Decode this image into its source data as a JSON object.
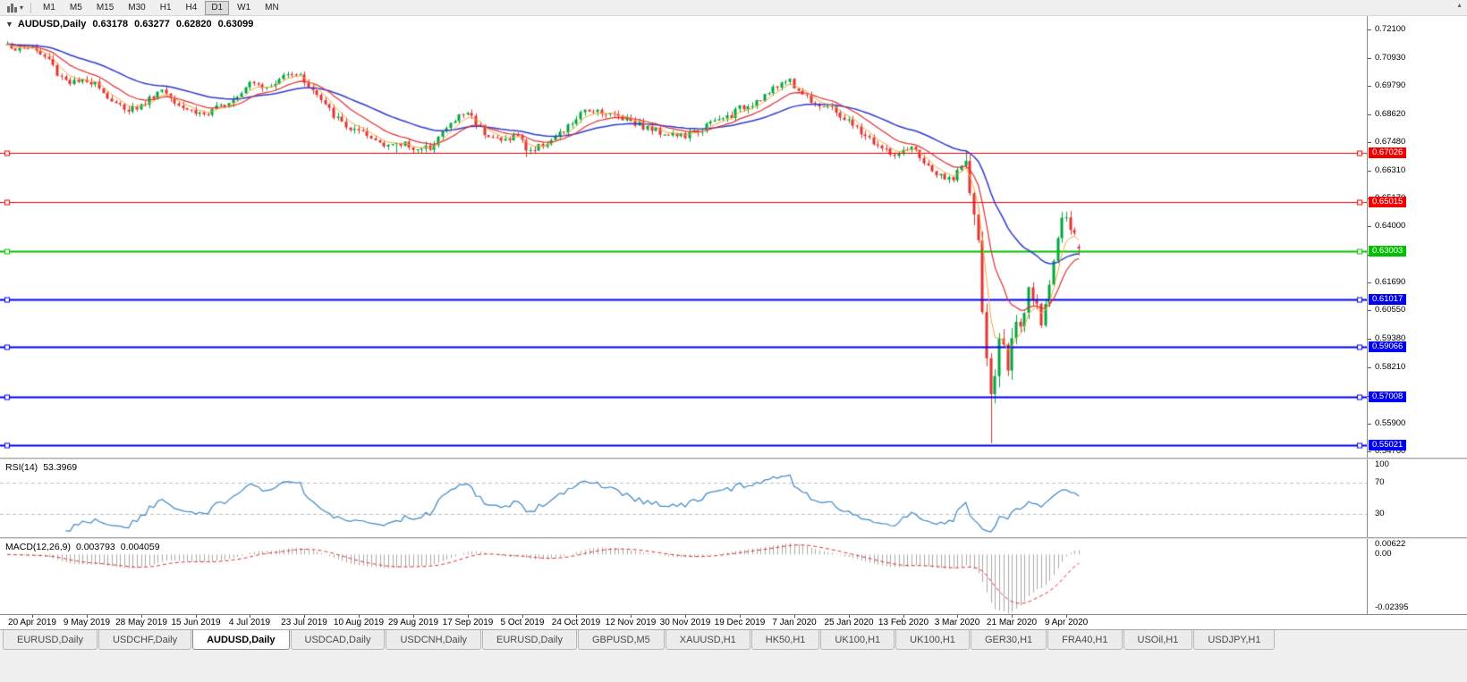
{
  "icons": {
    "toolbar_caret": "▾",
    "one_click": "▼",
    "scroll_up": "▲"
  },
  "toolbar": {
    "timeframes": [
      {
        "label": "M1",
        "active": false
      },
      {
        "label": "M5",
        "active": false
      },
      {
        "label": "M15",
        "active": false
      },
      {
        "label": "M30",
        "active": false
      },
      {
        "label": "H1",
        "active": false
      },
      {
        "label": "H4",
        "active": false
      },
      {
        "label": "D1",
        "active": true
      },
      {
        "label": "W1",
        "active": false
      },
      {
        "label": "MN",
        "active": false
      }
    ]
  },
  "chart": {
    "symbol_title": "AUDUSD,Daily",
    "ohlc": {
      "open": "0.63178",
      "high": "0.63277",
      "low": "0.62820",
      "close": "0.63099"
    }
  },
  "rsi": {
    "name": "RSI(14)",
    "value": "53.3969",
    "scale": [
      "100",
      "70",
      "30"
    ],
    "overbought": 70,
    "oversold": 30,
    "color": "#3e87c4"
  },
  "macd": {
    "name": "MACD(12,26,9)",
    "main_value": "0.003793",
    "signal_value": "0.004059",
    "scale": [
      "0.00622",
      "0.00",
      "-0.02395"
    ],
    "histogram_color": "#a9a9a9",
    "signal_color": "#e03030"
  },
  "chart_data": {
    "type": "candlestick",
    "symbol": "AUDUSD",
    "timeframe": "Daily",
    "candle_up_color": "#00a63e",
    "candle_down_color": "#e33434",
    "candle_count": 257,
    "seed": 1337,
    "last_candle": {
      "open": 0.63178,
      "high": 0.63277,
      "low": 0.6282,
      "close": 0.63099
    },
    "y_axis_ticks": [
      "0.72100",
      "0.70930",
      "0.69790",
      "0.68620",
      "0.67480",
      "0.66310",
      "0.65170",
      "0.64000",
      "0.62860",
      "0.61690",
      "0.60550",
      "0.59380",
      "0.58210",
      "0.57040",
      "0.55900",
      "0.54760"
    ],
    "x_axis_dates": [
      "20 Apr 2019",
      "9 May 2019",
      "28 May 2019",
      "15 Jun 2019",
      "4 Jul 2019",
      "23 Jul 2019",
      "10 Aug 2019",
      "29 Aug 2019",
      "17 Sep 2019",
      "5 Oct 2019",
      "24 Oct 2019",
      "12 Nov 2019",
      "30 Nov 2019",
      "19 Dec 2019",
      "7 Jan 2020",
      "25 Jan 2020",
      "13 Feb 2020",
      "3 Mar 2020",
      "21 Mar 2020",
      "9 Apr 2020"
    ],
    "horizontal_levels": [
      {
        "price": 0.67026,
        "label": "0.67026",
        "color": "#f00000",
        "width": 1
      },
      {
        "price": 0.65015,
        "label": "0.65015",
        "color": "#f00000",
        "width": 1
      },
      {
        "price": 0.63003,
        "label": "0.63003",
        "color": "#00c000",
        "width": 2
      },
      {
        "price": 0.61017,
        "label": "0.61017",
        "color": "#0000f0",
        "width": 2
      },
      {
        "price": 0.59066,
        "label": "0.59066",
        "color": "#0000f0",
        "width": 2
      },
      {
        "price": 0.57008,
        "label": "0.57008",
        "color": "#0000f0",
        "width": 2
      },
      {
        "price": 0.55021,
        "label": "0.55021",
        "color": "#0000f0",
        "width": 2
      }
    ],
    "moving_averages": [
      {
        "period": 34,
        "color": "#2e3bd0",
        "width": 1.5
      },
      {
        "period": 13,
        "color": "#e03030",
        "width": 1.2
      },
      {
        "period": 5,
        "color": "#f2a93b",
        "width": 1
      }
    ],
    "price_path": [
      [
        0,
        0.715
      ],
      [
        3,
        0.7125
      ],
      [
        6,
        0.714
      ],
      [
        8,
        0.7105
      ],
      [
        10,
        0.7088
      ],
      [
        12,
        0.703
      ],
      [
        15,
        0.6995
      ],
      [
        19,
        0.699
      ],
      [
        21,
        0.7005
      ],
      [
        23,
        0.695
      ],
      [
        26,
        0.69
      ],
      [
        29,
        0.6885
      ],
      [
        32,
        0.6895
      ],
      [
        35,
        0.694
      ],
      [
        37,
        0.6965
      ],
      [
        39,
        0.6935
      ],
      [
        42,
        0.6895
      ],
      [
        45,
        0.687
      ],
      [
        48,
        0.686
      ],
      [
        51,
        0.6895
      ],
      [
        54,
        0.693
      ],
      [
        56,
        0.696
      ],
      [
        58,
        0.7
      ],
      [
        60,
        0.6995
      ],
      [
        62,
        0.6965
      ],
      [
        64,
        0.6985
      ],
      [
        67,
        0.704
      ],
      [
        69,
        0.703
      ],
      [
        71,
        0.7
      ],
      [
        73,
        0.696
      ],
      [
        76,
        0.6895
      ],
      [
        79,
        0.684
      ],
      [
        82,
        0.68
      ],
      [
        84,
        0.6785
      ],
      [
        87,
        0.676
      ],
      [
        90,
        0.6745
      ],
      [
        93,
        0.673
      ],
      [
        95,
        0.6745
      ],
      [
        97,
        0.6725
      ],
      [
        99,
        0.671
      ],
      [
        101,
        0.673
      ],
      [
        103,
        0.677
      ],
      [
        106,
        0.682
      ],
      [
        108,
        0.6855
      ],
      [
        110,
        0.687
      ],
      [
        112,
        0.683
      ],
      [
        114,
        0.679
      ],
      [
        116,
        0.677
      ],
      [
        118,
        0.675
      ],
      [
        120,
        0.6765
      ],
      [
        122,
        0.6775
      ],
      [
        124,
        0.672
      ],
      [
        126,
        0.6715
      ],
      [
        128,
        0.674
      ],
      [
        131,
        0.6765
      ],
      [
        133,
        0.679
      ],
      [
        136,
        0.6845
      ],
      [
        138,
        0.687
      ],
      [
        140,
        0.6885
      ],
      [
        142,
        0.6875
      ],
      [
        144,
        0.686
      ],
      [
        146,
        0.6855
      ],
      [
        149,
        0.684
      ],
      [
        151,
        0.682
      ],
      [
        153,
        0.6805
      ],
      [
        156,
        0.679
      ],
      [
        159,
        0.678
      ],
      [
        162,
        0.677
      ],
      [
        164,
        0.6785
      ],
      [
        167,
        0.6815
      ],
      [
        169,
        0.683
      ],
      [
        171,
        0.6845
      ],
      [
        173,
        0.686
      ],
      [
        175,
        0.6885
      ],
      [
        177,
        0.69
      ],
      [
        179,
        0.692
      ],
      [
        181,
        0.694
      ],
      [
        183,
        0.696
      ],
      [
        185,
        0.699
      ],
      [
        186,
        0.701
      ],
      [
        187,
        0.6995
      ],
      [
        189,
        0.696
      ],
      [
        191,
        0.6935
      ],
      [
        193,
        0.691
      ],
      [
        196,
        0.689
      ],
      [
        198,
        0.687
      ],
      [
        201,
        0.683
      ],
      [
        203,
        0.68
      ],
      [
        205,
        0.6775
      ],
      [
        207,
        0.6745
      ],
      [
        209,
        0.672
      ],
      [
        211,
        0.67
      ],
      [
        213,
        0.669
      ],
      [
        215,
        0.671
      ],
      [
        216,
        0.672
      ],
      [
        218,
        0.669
      ],
      [
        220,
        0.664
      ],
      [
        222,
        0.6615
      ],
      [
        224,
        0.659
      ],
      [
        226,
        0.6605
      ],
      [
        227,
        0.663
      ],
      [
        228,
        0.6645
      ],
      [
        229,
        0.664
      ],
      [
        230,
        0.6545
      ],
      [
        231,
        0.646
      ],
      [
        232,
        0.631
      ],
      [
        233,
        0.607
      ],
      [
        234,
        0.584
      ],
      [
        235,
        0.57
      ],
      [
        236,
        0.579
      ],
      [
        237,
        0.594
      ],
      [
        238,
        0.59
      ],
      [
        239,
        0.583
      ],
      [
        240,
        0.596
      ],
      [
        241,
        0.599
      ],
      [
        242,
        0.5965
      ],
      [
        243,
        0.604
      ],
      [
        244,
        0.613
      ],
      [
        245,
        0.61
      ],
      [
        246,
        0.606
      ],
      [
        247,
        0.601
      ],
      [
        248,
        0.609
      ],
      [
        249,
        0.618
      ],
      [
        250,
        0.626
      ],
      [
        251,
        0.635
      ],
      [
        252,
        0.644
      ],
      [
        253,
        0.6415
      ],
      [
        254,
        0.639
      ],
      [
        255,
        0.636
      ],
      [
        256,
        0.631
      ]
    ],
    "spikes": [
      {
        "i": 235,
        "low": 0.551
      },
      {
        "i": 124,
        "low": 0.6685
      },
      {
        "i": 99,
        "low": 0.67
      },
      {
        "i": 93,
        "low": 0.6702
      },
      {
        "i": 252,
        "high": 0.646
      }
    ]
  },
  "tabs": [
    {
      "label": "EURUSD,Daily",
      "active": false
    },
    {
      "label": "USDCHF,Daily",
      "active": false
    },
    {
      "label": "AUDUSD,Daily",
      "active": true
    },
    {
      "label": "USDCAD,Daily",
      "active": false
    },
    {
      "label": "USDCNH,Daily",
      "active": false
    },
    {
      "label": "EURUSD,Daily",
      "active": false
    },
    {
      "label": "GBPUSD,M5",
      "active": false
    },
    {
      "label": "XAUUSD,H1",
      "active": false
    },
    {
      "label": "HK50,H1",
      "active": false
    },
    {
      "label": "UK100,H1",
      "active": false
    },
    {
      "label": "UK100,H1",
      "active": false
    },
    {
      "label": "GER30,H1",
      "active": false
    },
    {
      "label": "FRA40,H1",
      "active": false
    },
    {
      "label": "USOil,H1",
      "active": false
    },
    {
      "label": "USDJPY,H1",
      "active": false
    }
  ]
}
